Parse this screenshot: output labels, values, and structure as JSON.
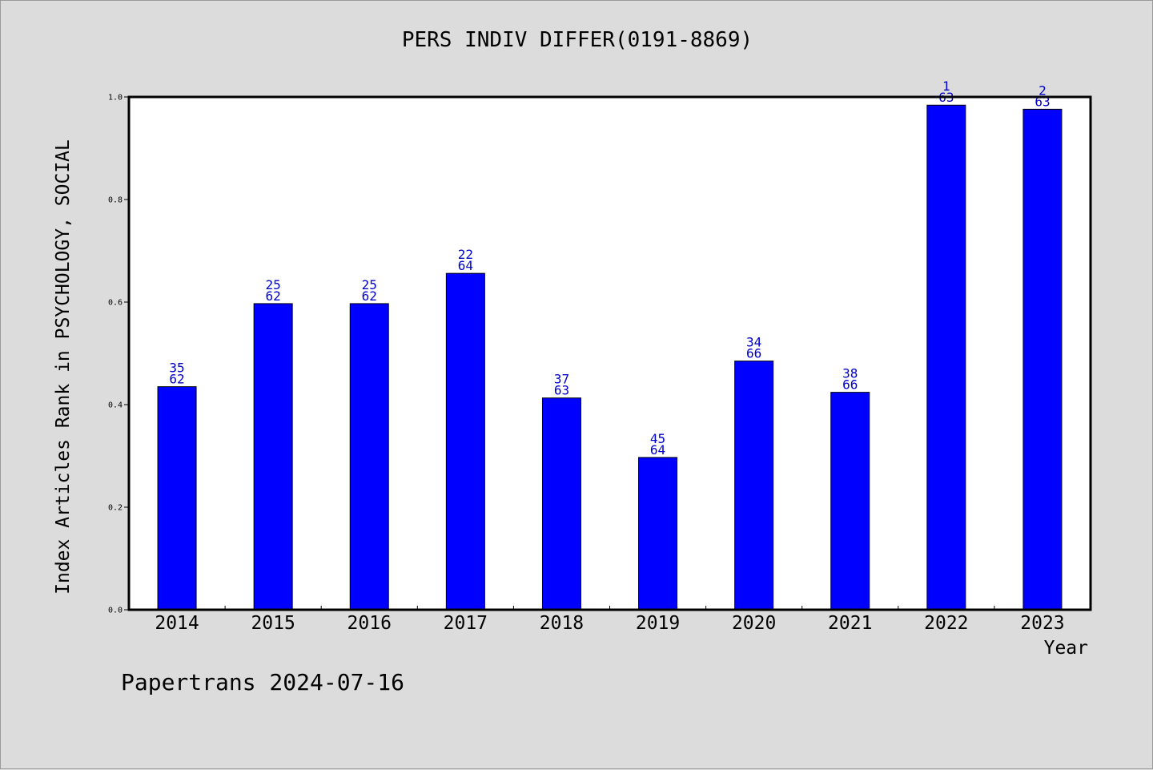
{
  "chart_data": {
    "type": "bar",
    "title": "PERS INDIV DIFFER(0191-8869)",
    "xlabel": "Year",
    "ylabel": "Index Articles Rank in PSYCHOLOGY, SOCIAL",
    "ylim": [
      0.0,
      1.0
    ],
    "yticks": [
      "0.0",
      "0.2",
      "0.4",
      "0.6",
      "0.8",
      "1.0"
    ],
    "categories": [
      "2014",
      "2015",
      "2016",
      "2017",
      "2018",
      "2019",
      "2020",
      "2021",
      "2022",
      "2023"
    ],
    "values": [
      0.435,
      0.597,
      0.597,
      0.656,
      0.413,
      0.297,
      0.485,
      0.424,
      0.984,
      0.976
    ],
    "ranks": [
      "35",
      "25",
      "25",
      "22",
      "37",
      "45",
      "34",
      "38",
      "1",
      "2"
    ],
    "totals": [
      "62",
      "62",
      "62",
      "64",
      "63",
      "64",
      "66",
      "66",
      "63",
      "63"
    ],
    "grid": false,
    "colors": {
      "bar": "#0000ff",
      "label": "#0000cc",
      "background": "#dcdcdc",
      "plot": "#ffffff"
    }
  },
  "footer": {
    "note": "Papertrans 2024-07-16"
  }
}
